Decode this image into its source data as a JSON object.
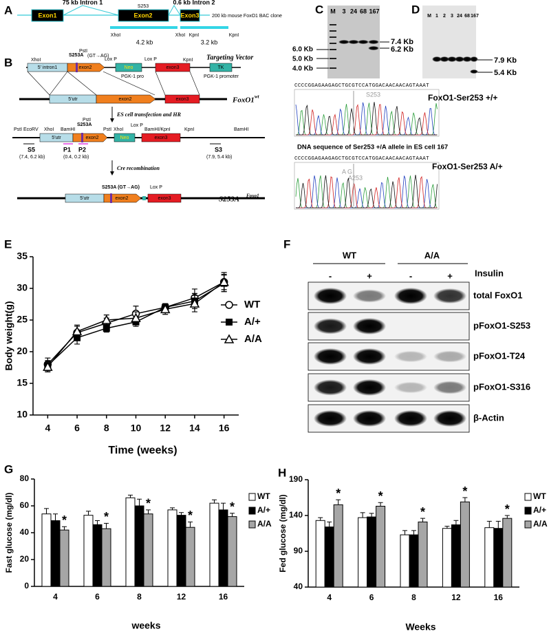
{
  "panel_labels": [
    "A",
    "B",
    "C",
    "D",
    "E",
    "F",
    "G",
    "H"
  ],
  "panel_a": {
    "labels": [
      "75 kb Intron 1",
      "0.6 kb Intron 2",
      "Exon1",
      "Exon2",
      "Exon3",
      "S253",
      "200 kb mouse FoxO1 BAC clone",
      "XhoI",
      "4.2 kb",
      "XhoI",
      "KpnI",
      "KpnI",
      "3.2 kb"
    ]
  },
  "panel_b": {
    "labels": [
      "XhoI",
      "PstI",
      "S253A",
      "(GT→AG)",
      "Lox P",
      "Lox P",
      "KpnI",
      "Targeting Vector",
      "5' intron1",
      "exon2",
      "Neo",
      "exon3",
      "TK",
      "PGK-1 pro",
      "PGK-1 promoter",
      "5'utr",
      "exon2",
      "exon3",
      "FoxO1",
      "wt",
      "ES cell transfection and HR",
      "PstI",
      "EcoRV",
      "XhoI",
      "BamHI",
      "PstI",
      "S253A",
      "PstI",
      "XhoI",
      "Lox P",
      "BamHI/KpnI",
      "KpnI",
      "BamHI",
      "5'utr",
      "exon2",
      "Neo",
      "exon3",
      "S5",
      "(7.4, 6.2 kb)",
      "P1",
      "P2",
      "(0.4, 0.2 kb)",
      "S3",
      "(7.9, 5.4 kb)",
      "Cre recombination",
      "S253A (GT→AG)",
      "Lox P",
      "5'utr",
      "exon2",
      "exon3",
      "S253A",
      "Foxo1"
    ]
  },
  "panel_c": {
    "lanes": [
      "M",
      "3",
      "24",
      "68",
      "167"
    ],
    "markers": [
      "6.0 Kb",
      "5.0 Kb",
      "4.0 Kb"
    ],
    "bands": [
      "7.4 Kb",
      "6.2 Kb"
    ]
  },
  "panel_d": {
    "lanes": [
      "M",
      "1",
      "2",
      "3",
      "24",
      "68",
      "167"
    ],
    "bands": [
      "7.9 Kb",
      "5.4 Kb"
    ]
  },
  "sequencing": {
    "sequence_1": "CCCCGGAGAAGAGCTGCGTCCATGGACAACAACAGTAAAT",
    "site_1": "S253",
    "title_1": "FoxO1-Ser253 +/+",
    "heading": "DNA sequence of Ser253 +/A allele in ES cell 167",
    "sequence_2": "CCCCGGAGAAGAGCTGCGTCCATGGACAACAACAGTAAAT",
    "bases_2": "A G",
    "site_2": "A253",
    "title_2": "FoxO1-Ser253 A/+"
  },
  "panel_f": {
    "groups": [
      "WT",
      "A/A"
    ],
    "treatment": "Insulin",
    "lanes": [
      "-",
      "+",
      "-",
      "+"
    ],
    "rows": [
      "total FoxO1",
      "pFoxO1-S253",
      "pFoxO1-T24",
      "pFoxO1-S316",
      "β-Actin"
    ]
  },
  "chart_data": [
    {
      "type": "line",
      "x_label": "Time (weeks)",
      "y_label": "Body weight(g)",
      "x": [
        4,
        6,
        8,
        10,
        12,
        14,
        16
      ],
      "xlim": [
        3,
        17
      ],
      "xticks": [
        4,
        6,
        8,
        10,
        12,
        14,
        16
      ],
      "ylim": [
        10,
        35
      ],
      "yticks": [
        10,
        15,
        20,
        25,
        30,
        35
      ],
      "series": [
        {
          "name": "WT",
          "color": "#000000",
          "marker": "circle",
          "values": [
            18,
            23,
            24.5,
            26,
            27,
            28.5,
            31
          ],
          "errors": [
            1,
            1,
            0.8,
            1.2,
            0.6,
            1.4,
            1.5
          ]
        },
        {
          "name": "A/+",
          "color": "#000000",
          "marker": "square",
          "values": [
            17.8,
            22.2,
            23.7,
            24.7,
            27,
            28,
            30.8
          ],
          "errors": [
            0.8,
            1,
            0.6,
            0.7,
            0.5,
            1.2,
            1.3
          ]
        },
        {
          "name": "A/A",
          "color": "#000000",
          "marker": "triangle",
          "values": [
            17.6,
            23.2,
            25,
            25.3,
            26.7,
            27.6,
            31
          ],
          "errors": [
            0.8,
            1,
            0.8,
            1,
            0.8,
            1.3,
            1.2
          ]
        }
      ]
    },
    {
      "type": "bar",
      "x_label": "weeks",
      "y_label": "Fast glucose (mg/dl)",
      "categories": [
        "4",
        "6",
        "8",
        "12",
        "16"
      ],
      "ylim": [
        0,
        80
      ],
      "yticks": [
        0,
        20,
        40,
        60,
        80
      ],
      "series": [
        {
          "name": "WT",
          "color": "#ffffff",
          "values": [
            54,
            53,
            66,
            57,
            62
          ],
          "errors": [
            4,
            3,
            2,
            1.5,
            2.5
          ]
        },
        {
          "name": "A/+",
          "color": "#000000",
          "values": [
            49,
            46,
            60,
            53,
            57
          ],
          "errors": [
            5,
            3,
            5,
            2,
            5
          ]
        },
        {
          "name": "A/A",
          "color": "#a6a6a6",
          "values": [
            42,
            43,
            54,
            44,
            52
          ],
          "errors": [
            2.5,
            4,
            3,
            4,
            2.5
          ],
          "significance": [
            "*",
            "*",
            "*",
            "*",
            "*"
          ]
        }
      ]
    },
    {
      "type": "bar",
      "x_label": "Weeks",
      "y_label": "Fed glucose (mg/dl)",
      "categories": [
        "4",
        "6",
        "8",
        "12",
        "16"
      ],
      "ylim": [
        40,
        190
      ],
      "yticks": [
        40,
        90,
        140,
        190
      ],
      "series": [
        {
          "name": "WT",
          "color": "#ffffff",
          "values": [
            133,
            137,
            113,
            122,
            123
          ],
          "errors": [
            4,
            7,
            6,
            3,
            9
          ]
        },
        {
          "name": "A/+",
          "color": "#000000",
          "values": [
            124,
            138,
            113,
            127,
            122
          ],
          "errors": [
            7,
            5,
            6,
            6,
            10
          ]
        },
        {
          "name": "A/A",
          "color": "#a6a6a6",
          "values": [
            155,
            153,
            131,
            159,
            136
          ],
          "errors": [
            7,
            5,
            5,
            6,
            4
          ],
          "significance": [
            "*",
            "*",
            "*",
            "*",
            "*"
          ]
        }
      ]
    }
  ]
}
